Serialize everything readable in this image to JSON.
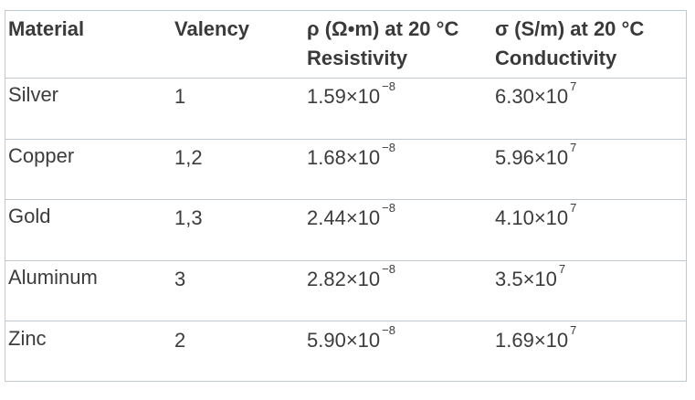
{
  "headers": {
    "material": "Material",
    "valency": "Valency",
    "resistivity_line1": "ρ (Ω•m) at 20 °C",
    "resistivity_line2": "Resistivity",
    "conductivity_line1": "σ (S/m) at 20 °C",
    "conductivity_line2": "Conductivity"
  },
  "rows": [
    {
      "material": "Silver",
      "valency": "1",
      "rho_base": "1.59×10",
      "rho_exp": "−8",
      "sigma_base": "6.30×10",
      "sigma_exp": "7"
    },
    {
      "material": "Copper",
      "valency": "1,2",
      "rho_base": "1.68×10",
      "rho_exp": "−8",
      "sigma_base": "5.96×10",
      "sigma_exp": "7"
    },
    {
      "material": "Gold",
      "valency": "1,3",
      "rho_base": "2.44×10",
      "rho_exp": "−8",
      "sigma_base": "4.10×10",
      "sigma_exp": "7"
    },
    {
      "material": "Aluminum",
      "valency": "3",
      "rho_base": "2.82×10",
      "rho_exp": "−8",
      "sigma_base": "3.5×10",
      "sigma_exp": "7"
    },
    {
      "material": "Zinc",
      "valency": "2",
      "rho_base": "5.90×10",
      "rho_exp": "−8",
      "sigma_base": "1.69×10",
      "sigma_exp": "7"
    }
  ]
}
